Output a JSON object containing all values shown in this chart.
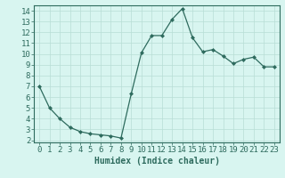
{
  "x": [
    0,
    1,
    2,
    3,
    4,
    5,
    6,
    7,
    8,
    9,
    10,
    11,
    12,
    13,
    14,
    15,
    16,
    17,
    18,
    19,
    20,
    21,
    22,
    23
  ],
  "y": [
    7.0,
    5.0,
    4.0,
    3.2,
    2.8,
    2.6,
    2.5,
    2.4,
    2.2,
    6.3,
    10.1,
    11.7,
    11.7,
    13.2,
    14.2,
    11.5,
    10.2,
    10.4,
    9.8,
    9.1,
    9.5,
    9.7,
    8.8,
    8.8
  ],
  "line_color": "#2e6b5e",
  "marker": "D",
  "marker_size": 2.0,
  "bg_color": "#d8f5f0",
  "grid_color": "#b8ddd5",
  "xlabel": "Humidex (Indice chaleur)",
  "xlim": [
    -0.5,
    23.5
  ],
  "ylim": [
    1.8,
    14.5
  ],
  "yticks": [
    2,
    3,
    4,
    5,
    6,
    7,
    8,
    9,
    10,
    11,
    12,
    13,
    14
  ],
  "xticks": [
    0,
    1,
    2,
    3,
    4,
    5,
    6,
    7,
    8,
    9,
    10,
    11,
    12,
    13,
    14,
    15,
    16,
    17,
    18,
    19,
    20,
    21,
    22,
    23
  ],
  "tick_color": "#2e6b5e",
  "label_color": "#2e6b5e",
  "xlabel_fontsize": 7,
  "tick_fontsize": 6.5
}
